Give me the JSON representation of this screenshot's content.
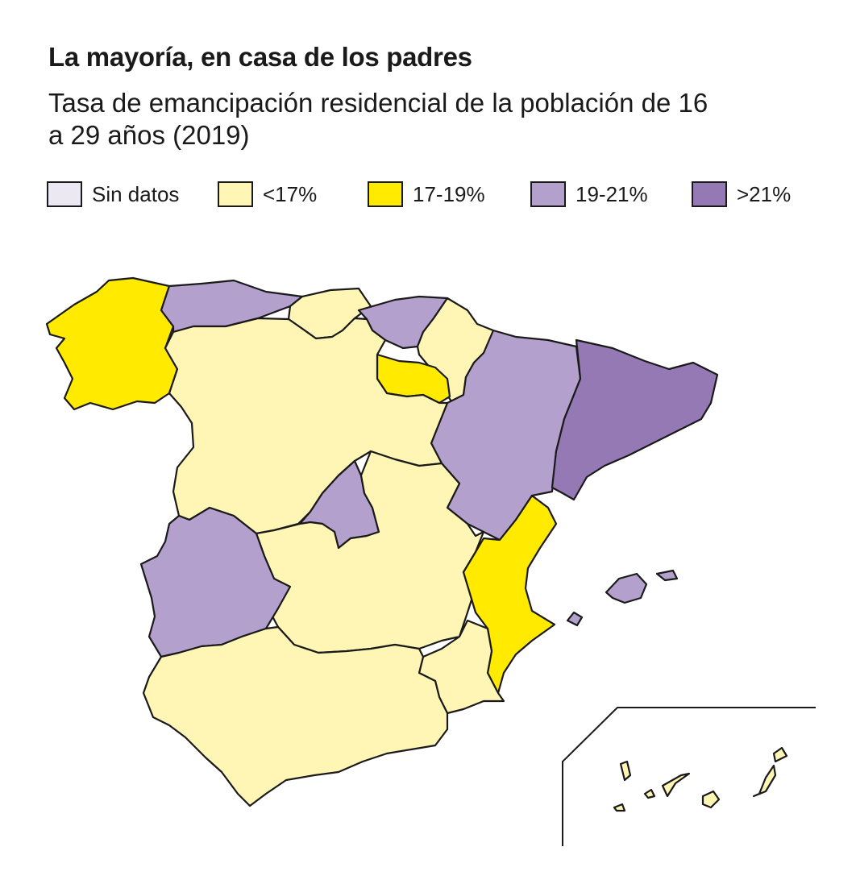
{
  "header": {
    "title": "La mayoría, en casa de los padres",
    "subtitle": "Tasa de emancipación residencial de la población de 16 a 29 años (2019)"
  },
  "legend": {
    "items": [
      {
        "label": "Sin datos",
        "color": "#ece8f3"
      },
      {
        "label": "<17%",
        "color": "#fff6b6"
      },
      {
        "label": "17-19%",
        "color": "#ffea00"
      },
      {
        "label": "19-21%",
        "color": "#b4a0cd"
      },
      {
        "label": ">21%",
        "color": "#9479b5"
      }
    ]
  },
  "map": {
    "regions": [
      {
        "name": "Galicia",
        "category": "17-19%"
      },
      {
        "name": "Asturias",
        "category": "19-21%"
      },
      {
        "name": "Cantabria",
        "category": "<17%"
      },
      {
        "name": "País Vasco",
        "category": "19-21%"
      },
      {
        "name": "Navarra",
        "category": "<17%"
      },
      {
        "name": "La Rioja",
        "category": "17-19%"
      },
      {
        "name": "Aragón",
        "category": "19-21%"
      },
      {
        "name": "Cataluña",
        "category": ">21%"
      },
      {
        "name": "Castilla y León",
        "category": "<17%"
      },
      {
        "name": "Madrid",
        "category": "19-21%"
      },
      {
        "name": "Castilla-La Mancha",
        "category": "<17%"
      },
      {
        "name": "Extremadura",
        "category": "19-21%"
      },
      {
        "name": "Comunitat Valenciana",
        "category": "17-19%"
      },
      {
        "name": "Murcia",
        "category": "<17%"
      },
      {
        "name": "Andalucía",
        "category": "<17%"
      },
      {
        "name": "Illes Balears",
        "category": "19-21%"
      },
      {
        "name": "Canarias",
        "category": "<17%"
      }
    ]
  }
}
